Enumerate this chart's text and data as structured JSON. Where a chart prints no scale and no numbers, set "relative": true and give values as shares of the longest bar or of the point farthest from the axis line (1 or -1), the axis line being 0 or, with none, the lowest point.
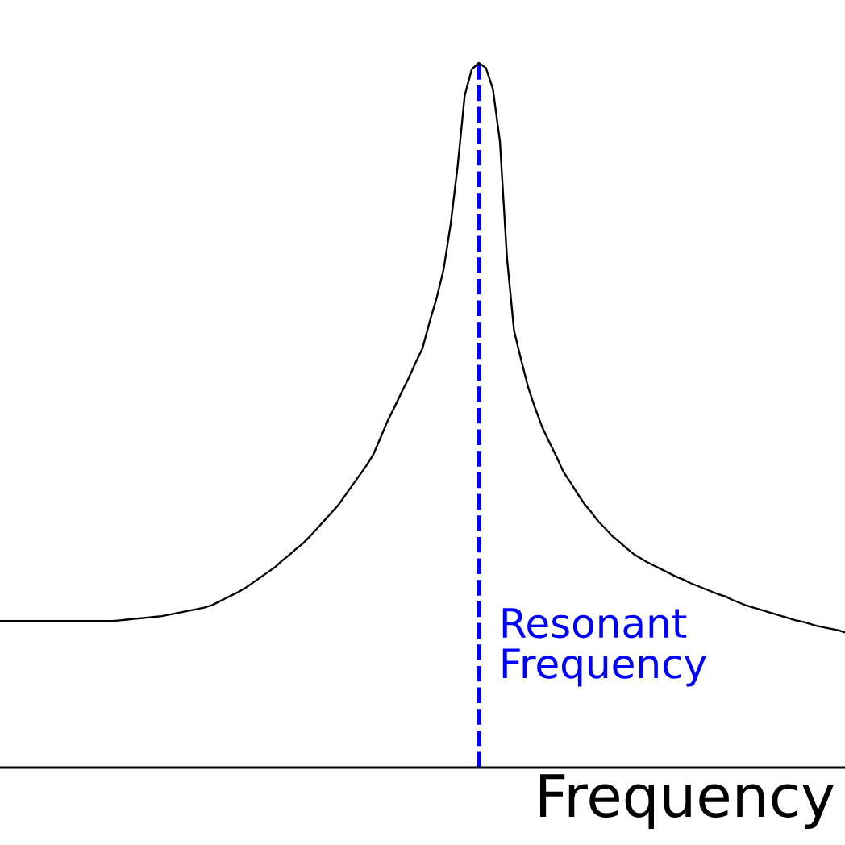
{
  "chart_data": {
    "type": "line",
    "relative": true,
    "xlabel": "Frequency",
    "categories": [
      null,
      null,
      null,
      null,
      null,
      null,
      null,
      null,
      null,
      null,
      null,
      null,
      null,
      null,
      null,
      null,
      null,
      null,
      null,
      null,
      null,
      null,
      null,
      null,
      null,
      null,
      null,
      null,
      null,
      null,
      null,
      null,
      null,
      null,
      null,
      null,
      null,
      null,
      null,
      null,
      null,
      null,
      null,
      null,
      null,
      null,
      null,
      null,
      null,
      null,
      null,
      null,
      null,
      null,
      null,
      null,
      null,
      null,
      null,
      null,
      null,
      null,
      null,
      null,
      null,
      null,
      null,
      null,
      null,
      null,
      null,
      null,
      null,
      null,
      null,
      null,
      null,
      null,
      null,
      null,
      null,
      null,
      null,
      null,
      null,
      null,
      null,
      null,
      null,
      null,
      null,
      null,
      null,
      null,
      null,
      null,
      null,
      null,
      null,
      null,
      null,
      null,
      null,
      null,
      null,
      null,
      null,
      null,
      null,
      null,
      null,
      null,
      null,
      null,
      null,
      null,
      null,
      null,
      null,
      null,
      null
    ],
    "series": [
      {
        "color": "#000000",
        "values": [
          0.208,
          0.208,
          0.208,
          0.208,
          0.208,
          0.208,
          0.208,
          0.208,
          0.208,
          0.208,
          0.208,
          0.208,
          0.208,
          0.208,
          0.208,
          0.208,
          0.208,
          0.209,
          0.21,
          0.211,
          0.212,
          0.213,
          0.214,
          0.215,
          0.217,
          0.219,
          0.221,
          0.223,
          0.225,
          0.227,
          0.23,
          0.235,
          0.24,
          0.245,
          0.25,
          0.256,
          0.263,
          0.27,
          0.277,
          0.284,
          0.293,
          0.301,
          0.31,
          0.318,
          0.328,
          0.339,
          0.35,
          0.361,
          0.372,
          0.386,
          0.4,
          0.414,
          0.428,
          0.444,
          0.467,
          0.491,
          0.511,
          0.532,
          0.552,
          0.574,
          0.595,
          0.632,
          0.666,
          0.707,
          0.771,
          0.854,
          0.954,
          0.991,
          1.0,
          0.993,
          0.963,
          0.888,
          0.723,
          0.62,
          0.579,
          0.54,
          0.51,
          0.483,
          0.462,
          0.442,
          0.42,
          0.405,
          0.389,
          0.374,
          0.362,
          0.349,
          0.339,
          0.328,
          0.32,
          0.311,
          0.303,
          0.297,
          0.291,
          0.286,
          0.281,
          0.276,
          0.271,
          0.267,
          0.262,
          0.258,
          0.254,
          0.25,
          0.246,
          0.243,
          0.238,
          0.234,
          0.23,
          0.227,
          0.224,
          0.221,
          0.218,
          0.215,
          0.212,
          0.209,
          0.207,
          0.204,
          0.201,
          0.199,
          0.197,
          0.195,
          0.192
        ]
      }
    ],
    "annotations": [
      "Resonant Frequency"
    ]
  }
}
